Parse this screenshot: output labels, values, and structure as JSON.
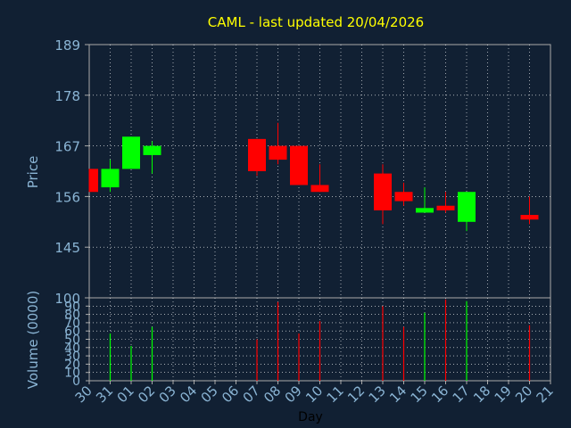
{
  "chart_data": [
    {
      "type": "candlestick",
      "title": "CAML - last updated 20/04/2026",
      "ylabel": "Price",
      "ylim": [
        134,
        189
      ],
      "y_ticks": [
        145,
        156,
        167,
        178,
        189
      ],
      "x_ticks": [
        "30",
        "31",
        "01",
        "02",
        "03",
        "04",
        "05",
        "06",
        "07",
        "08",
        "09",
        "10",
        "11",
        "12",
        "13",
        "14",
        "15",
        "16",
        "17",
        "18",
        "19",
        "20",
        "21"
      ],
      "grid": true,
      "colors": {
        "up": "#00ff00",
        "down": "#ff0000",
        "title": "#ffff00",
        "axis_text": "#8ab4d4",
        "axis": "#aaaaaa",
        "grid": "#ffffff",
        "background": "#112033"
      },
      "candles": [
        {
          "day": "30",
          "open": 162,
          "close": 157,
          "high": 162,
          "low": 157
        },
        {
          "day": "31",
          "open": 158,
          "close": 162,
          "high": 164,
          "low": 157
        },
        {
          "day": "01",
          "open": 162,
          "close": 169,
          "high": 169,
          "low": 162
        },
        {
          "day": "02",
          "open": 165,
          "close": 167,
          "high": 168,
          "low": 161
        },
        {
          "day": "07",
          "open": 168.5,
          "close": 161.5,
          "high": 168.5,
          "low": 160.5
        },
        {
          "day": "08",
          "open": 167,
          "close": 164,
          "high": 172,
          "low": 163
        },
        {
          "day": "09",
          "open": 167,
          "close": 158.5,
          "high": 167,
          "low": 158.5
        },
        {
          "day": "10",
          "open": 158.5,
          "close": 157,
          "high": 163,
          "low": 157
        },
        {
          "day": "13",
          "open": 161,
          "close": 153,
          "high": 163,
          "low": 150
        },
        {
          "day": "14",
          "open": 157,
          "close": 155,
          "high": 159,
          "low": 154
        },
        {
          "day": "15",
          "open": 152.5,
          "close": 153.5,
          "high": 158,
          "low": 152.5
        },
        {
          "day": "16",
          "open": 154,
          "close": 153,
          "high": 157,
          "low": 152.5
        },
        {
          "day": "17",
          "open": 150.5,
          "close": 157,
          "high": 157,
          "low": 148.5
        },
        {
          "day": "20",
          "open": 152,
          "close": 151,
          "high": 156,
          "low": 150
        }
      ]
    },
    {
      "type": "bar",
      "xlabel": "Day",
      "ylabel": "Volume (0000)",
      "ylim": [
        0,
        100
      ],
      "y_ticks": [
        0,
        10,
        20,
        30,
        40,
        50,
        60,
        70,
        80,
        90,
        100
      ],
      "x_ticks": [
        "30",
        "31",
        "01",
        "02",
        "03",
        "04",
        "05",
        "06",
        "07",
        "08",
        "09",
        "10",
        "11",
        "12",
        "13",
        "14",
        "15",
        "16",
        "17",
        "18",
        "19",
        "20",
        "21"
      ],
      "bars": [
        {
          "day": "30",
          "value": 0,
          "direction": "down"
        },
        {
          "day": "31",
          "value": 57,
          "direction": "up"
        },
        {
          "day": "01",
          "value": 42,
          "direction": "up"
        },
        {
          "day": "02",
          "value": 65,
          "direction": "up"
        },
        {
          "day": "07",
          "value": 50,
          "direction": "down"
        },
        {
          "day": "08",
          "value": 95,
          "direction": "down"
        },
        {
          "day": "09",
          "value": 57,
          "direction": "down"
        },
        {
          "day": "10",
          "value": 72,
          "direction": "down"
        },
        {
          "day": "13",
          "value": 90,
          "direction": "down"
        },
        {
          "day": "14",
          "value": 65,
          "direction": "down"
        },
        {
          "day": "15",
          "value": 82,
          "direction": "up"
        },
        {
          "day": "16",
          "value": 98,
          "direction": "down"
        },
        {
          "day": "17",
          "value": 96,
          "direction": "up"
        },
        {
          "day": "20",
          "value": 67,
          "direction": "down"
        }
      ]
    }
  ]
}
